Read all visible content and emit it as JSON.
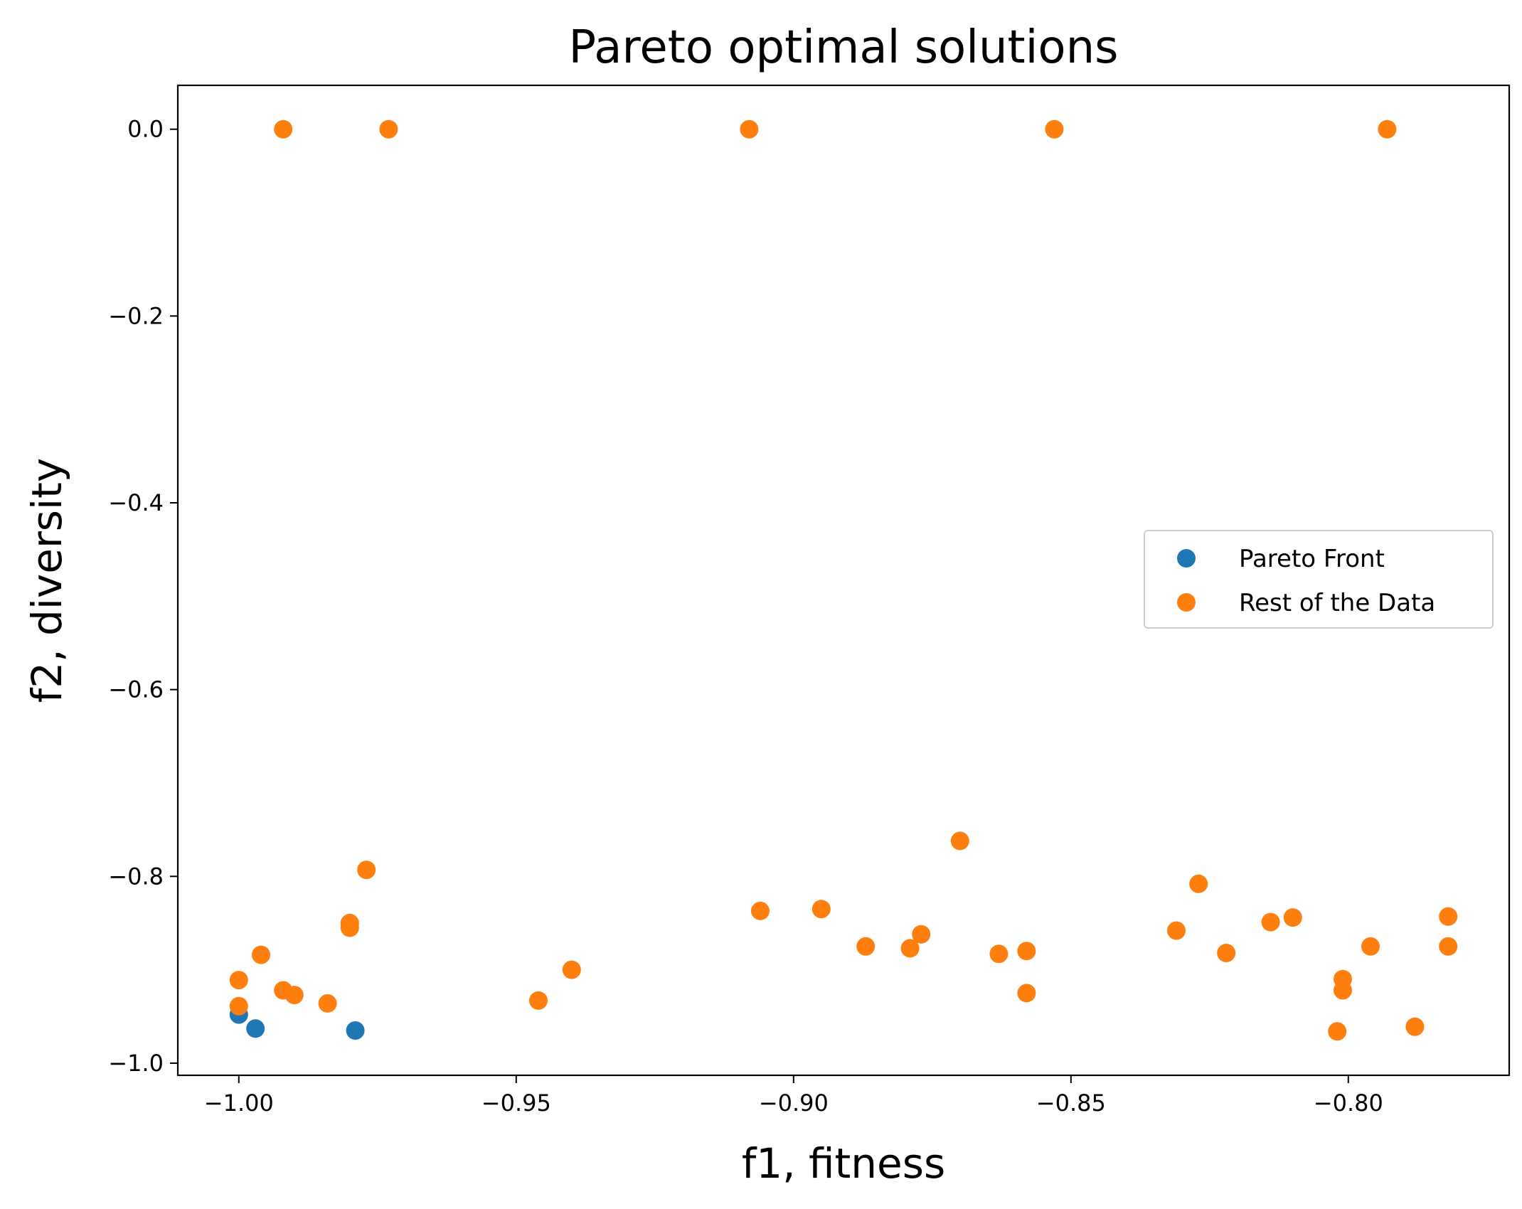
{
  "chart_data": {
    "type": "scatter",
    "title": "Pareto optimal solutions",
    "xlabel": "f1, fitness",
    "ylabel": "f2, diversity",
    "xlim": [
      -1.011,
      -0.771
    ],
    "ylim": [
      -1.013,
      0.047
    ],
    "xticks": [
      -1.0,
      -0.95,
      -0.9,
      -0.85,
      -0.8
    ],
    "xtick_labels": [
      "−1.00",
      "−0.95",
      "−0.90",
      "−0.85",
      "−0.80"
    ],
    "yticks": [
      0.0,
      -0.2,
      -0.4,
      -0.6,
      -0.8,
      -1.0
    ],
    "ytick_labels": [
      "0.0",
      "−0.2",
      "−0.4",
      "−0.6",
      "−0.8",
      "−1.0"
    ],
    "grid": false,
    "legend_position": "center-right",
    "series": [
      {
        "name": "Pareto Front",
        "color": "#1f77b4",
        "points": [
          [
            -1.0,
            -0.948
          ],
          [
            -0.997,
            -0.963
          ],
          [
            -0.979,
            -0.965
          ]
        ]
      },
      {
        "name": "Rest of the Data",
        "color": "#ff7f0e",
        "points": [
          [
            -0.992,
            0.0
          ],
          [
            -0.973,
            0.0
          ],
          [
            -0.908,
            0.0
          ],
          [
            -0.853,
            0.0
          ],
          [
            -0.793,
            0.0
          ],
          [
            -1.0,
            -0.911
          ],
          [
            -1.0,
            -0.939
          ],
          [
            -0.996,
            -0.884
          ],
          [
            -0.992,
            -0.922
          ],
          [
            -0.99,
            -0.927
          ],
          [
            -0.984,
            -0.936
          ],
          [
            -0.98,
            -0.85
          ],
          [
            -0.98,
            -0.855
          ],
          [
            -0.977,
            -0.793
          ],
          [
            -0.946,
            -0.933
          ],
          [
            -0.94,
            -0.9
          ],
          [
            -0.906,
            -0.837
          ],
          [
            -0.895,
            -0.835
          ],
          [
            -0.887,
            -0.875
          ],
          [
            -0.879,
            -0.877
          ],
          [
            -0.877,
            -0.862
          ],
          [
            -0.87,
            -0.762
          ],
          [
            -0.863,
            -0.883
          ],
          [
            -0.858,
            -0.88
          ],
          [
            -0.858,
            -0.925
          ],
          [
            -0.831,
            -0.858
          ],
          [
            -0.827,
            -0.808
          ],
          [
            -0.822,
            -0.882
          ],
          [
            -0.814,
            -0.849
          ],
          [
            -0.81,
            -0.844
          ],
          [
            -0.802,
            -0.966
          ],
          [
            -0.801,
            -0.91
          ],
          [
            -0.801,
            -0.922
          ],
          [
            -0.796,
            -0.875
          ],
          [
            -0.788,
            -0.961
          ],
          [
            -0.782,
            -0.875
          ],
          [
            -0.782,
            -0.843
          ]
        ]
      }
    ]
  }
}
